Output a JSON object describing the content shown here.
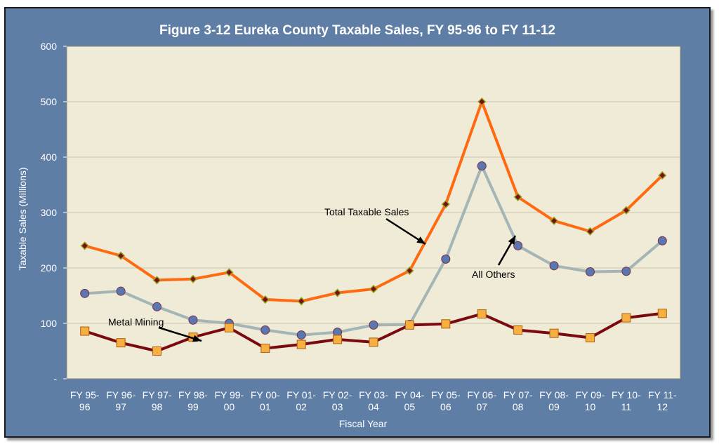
{
  "chart_data": {
    "type": "line",
    "title": "Figure 3-12 Eureka County Taxable Sales, FY 95-96 to FY 11-12",
    "xlabel": "Fiscal Year",
    "ylabel": "Taxable Sales (Millions)",
    "ylim": [
      0,
      600
    ],
    "yticks": [
      "-",
      "100",
      "200",
      "300",
      "400",
      "500",
      "600"
    ],
    "grid": true,
    "categories": [
      [
        "FY 95-",
        "96"
      ],
      [
        "FY 96-",
        "97"
      ],
      [
        "FY 97-",
        "98"
      ],
      [
        "FY 98-",
        "99"
      ],
      [
        "FY 99-",
        "00"
      ],
      [
        "FY 00-",
        "01"
      ],
      [
        "FY 01-",
        "02"
      ],
      [
        "FY 02-",
        "03"
      ],
      [
        "FY 03-",
        "04"
      ],
      [
        "FY 04-",
        "05"
      ],
      [
        "FY 05-",
        "06"
      ],
      [
        "FY 06-",
        "07"
      ],
      [
        "FY 07-",
        "08"
      ],
      [
        "FY 08-",
        "09"
      ],
      [
        "FY 09-",
        "10"
      ],
      [
        "FY 10-",
        "11"
      ],
      [
        "FY 11-",
        "12"
      ]
    ],
    "series": [
      {
        "name": "Total Taxable Sales",
        "color": "#ff6a10",
        "marker": "diamond",
        "marker_fill": "#7a1010",
        "marker_stroke": "#9aa020",
        "values": [
          240,
          222,
          178,
          180,
          192,
          143,
          140,
          155,
          162,
          195,
          315,
          500,
          328,
          285,
          266,
          304,
          367
        ]
      },
      {
        "name": "All Others",
        "color": "#a3b5b5",
        "marker": "circle",
        "marker_fill": "#5a78ad",
        "marker_stroke": "#7a2a50",
        "values": [
          154,
          158,
          130,
          106,
          100,
          88,
          79,
          84,
          97,
          98,
          216,
          384,
          240,
          204,
          193,
          194,
          249
        ]
      },
      {
        "name": "Metal Mining",
        "color": "#7a0a10",
        "marker": "square",
        "marker_fill": "#f5b041",
        "marker_stroke": "#b06010",
        "values": [
          86,
          65,
          50,
          75,
          92,
          55,
          62,
          71,
          66,
          97,
          99,
          117,
          88,
          82,
          74,
          110,
          118
        ]
      }
    ],
    "annotations": [
      {
        "text": "Total Taxable Sales",
        "series": 0
      },
      {
        "text": "All Others",
        "series": 1
      },
      {
        "text": "Metal Mining",
        "series": 2
      }
    ]
  },
  "colors": {
    "frame": "#5f7ea6",
    "plot_background": "#efebd6",
    "gridline": "#c8c4b0",
    "text": "#ffffff"
  }
}
